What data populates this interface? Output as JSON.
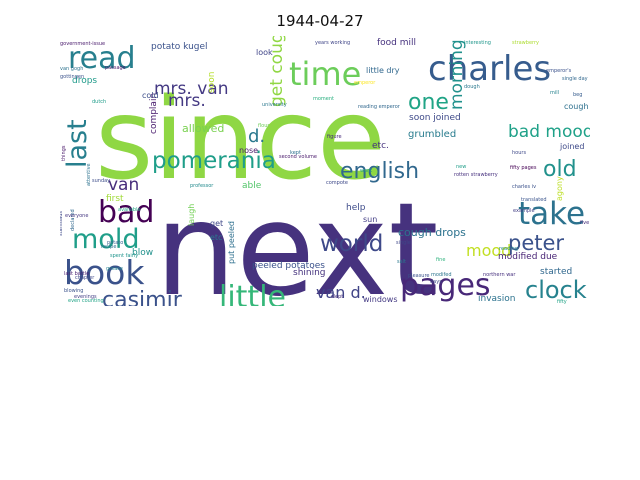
{
  "chart_data": {
    "type": "wordcloud",
    "title": "1944-04-27",
    "words": [
      {
        "text": "since",
        "color": "#8fd744"
      },
      {
        "text": "next",
        "color": "#46327e"
      },
      {
        "text": "charles",
        "color": "#365c8d"
      },
      {
        "text": "time",
        "color": "#6ccd5a"
      },
      {
        "text": "read",
        "color": "#277f8e"
      },
      {
        "text": "book",
        "color": "#3b528b"
      },
      {
        "text": "last",
        "color": "#277f8e"
      },
      {
        "text": "mold",
        "color": "#1f9e89"
      },
      {
        "text": "bad",
        "color": "#440154"
      },
      {
        "text": "take",
        "color": "#2c728e"
      },
      {
        "text": "pages",
        "color": "#482878"
      },
      {
        "text": "little",
        "color": "#35b779"
      },
      {
        "text": "pomerania",
        "color": "#1f9e89"
      },
      {
        "text": "english",
        "color": "#31688e"
      },
      {
        "text": "world",
        "color": "#3e4989"
      },
      {
        "text": "clock",
        "color": "#26828e"
      },
      {
        "text": "casimir",
        "color": "#3b528b"
      },
      {
        "text": "peter",
        "color": "#3b528b"
      },
      {
        "text": "old",
        "color": "#21918c"
      },
      {
        "text": "one",
        "color": "#20a486"
      },
      {
        "text": "mrs. van",
        "color": "#443983"
      },
      {
        "text": "mrs.",
        "color": "#443983"
      },
      {
        "text": "bad mood",
        "color": "#1fa188"
      },
      {
        "text": "morning",
        "color": "#21918c"
      },
      {
        "text": "get cough",
        "color": "#90d743"
      },
      {
        "text": "van d.",
        "color": "#414487"
      },
      {
        "text": "van",
        "color": "#472d7b"
      },
      {
        "text": "d.",
        "color": "#2a788e"
      },
      {
        "text": "mood",
        "color": "#c2df23"
      },
      {
        "text": "allowed",
        "color": "#7ad151"
      },
      {
        "text": "cough drops",
        "color": "#2c728e"
      },
      {
        "text": "shining",
        "color": "#46337e"
      },
      {
        "text": "peeled potatoes",
        "color": "#3b528b"
      },
      {
        "text": "grumbled",
        "color": "#287c8e"
      },
      {
        "text": "soon joined",
        "color": "#3e4a89"
      },
      {
        "text": "modified due",
        "color": "#482475"
      },
      {
        "text": "invasion",
        "color": "#2c728e"
      },
      {
        "text": "windows",
        "color": "#443a83"
      },
      {
        "text": "started",
        "color": "#31688e"
      },
      {
        "text": "potato kugel",
        "color": "#3b528b"
      },
      {
        "text": "food mill",
        "color": "#46327e"
      },
      {
        "text": "little dry",
        "color": "#31688e"
      },
      {
        "text": "joined",
        "color": "#3e4a89"
      },
      {
        "text": "cough",
        "color": "#2d708e"
      },
      {
        "text": "complain",
        "color": "#481b6d"
      },
      {
        "text": "soon",
        "color": "#b5de2b"
      },
      {
        "text": "cold",
        "color": "#3d4e8a"
      },
      {
        "text": "look",
        "color": "#404588"
      },
      {
        "text": "nose",
        "color": "#48186a"
      },
      {
        "text": "first",
        "color": "#a0da39"
      },
      {
        "text": "blow",
        "color": "#21918c"
      },
      {
        "text": "laugh",
        "color": "#73d056"
      },
      {
        "text": "put peeled",
        "color": "#2e6f8e"
      },
      {
        "text": "get",
        "color": "#3f4788"
      },
      {
        "text": "etc",
        "color": "#2a788e"
      },
      {
        "text": "help",
        "color": "#3e4c8a"
      },
      {
        "text": "sun",
        "color": "#433e85"
      },
      {
        "text": "able",
        "color": "#52c569"
      },
      {
        "text": "drops",
        "color": "#1f9a8a"
      },
      {
        "text": "etc.",
        "color": "#46327e"
      },
      {
        "text": "agony",
        "color": "#bddf26"
      },
      {
        "text": "government-issue",
        "color": "#48196b"
      },
      {
        "text": "strawberry",
        "color": "#addc30"
      },
      {
        "text": "interesting",
        "color": "#1f968b"
      },
      {
        "text": "charles iv",
        "color": "#3b528b"
      },
      {
        "text": "years working",
        "color": "#404688"
      },
      {
        "text": "flour",
        "color": "#6ece58"
      },
      {
        "text": "dough",
        "color": "#2a788e"
      },
      {
        "text": "rotten strawberry",
        "color": "#46307e"
      },
      {
        "text": "professor",
        "color": "#238a8d"
      },
      {
        "text": "translated",
        "color": "#3a548c"
      },
      {
        "text": "single day",
        "color": "#31688e"
      },
      {
        "text": "fifty pages",
        "color": "#440154"
      },
      {
        "text": "mill",
        "color": "#26828e"
      },
      {
        "text": "beg",
        "color": "#365c8d"
      },
      {
        "text": "new",
        "color": "#1f9e89"
      },
      {
        "text": "fine",
        "color": "#2db27d"
      },
      {
        "text": "days",
        "color": "#3e4989"
      },
      {
        "text": "recipe",
        "color": "#2e6e8e"
      },
      {
        "text": "passage",
        "color": "#481467"
      },
      {
        "text": "chapter",
        "color": "#3f4889"
      },
      {
        "text": "university",
        "color": "#2a788e"
      },
      {
        "text": "moment",
        "color": "#29af7f"
      },
      {
        "text": "second volume",
        "color": "#48186a"
      },
      {
        "text": "figure",
        "color": "#472a7a"
      },
      {
        "text": "emperor",
        "color": "#fde725"
      },
      {
        "text": "reading emperor",
        "color": "#31688e"
      },
      {
        "text": "gottingen",
        "color": "#3b528b"
      },
      {
        "text": "van gogh",
        "color": "#2c728e"
      },
      {
        "text": "hours",
        "color": "#3e4989"
      },
      {
        "text": "example",
        "color": "#433e85"
      },
      {
        "text": "potato",
        "color": "#34618d"
      },
      {
        "text": "grease",
        "color": "#26828e"
      },
      {
        "text": "spent fairly",
        "color": "#1f948c"
      },
      {
        "text": "last battle",
        "color": "#482173"
      },
      {
        "text": "kept",
        "color": "#2d708e"
      },
      {
        "text": "dutch",
        "color": "#1e9c89"
      },
      {
        "text": "compote",
        "color": "#3e4989"
      },
      {
        "text": "slept",
        "color": "#472f7d"
      },
      {
        "text": "single",
        "color": "#3f4788"
      },
      {
        "text": "five days",
        "color": "#472d7b"
      },
      {
        "text": "salt",
        "color": "#2a788e"
      },
      {
        "text": "reading",
        "color": "#24878e"
      },
      {
        "text": "pleasure",
        "color": "#3b528b"
      },
      {
        "text": "fifty",
        "color": "#20a386"
      },
      {
        "text": "available",
        "color": "#22a884"
      },
      {
        "text": "evenings",
        "color": "#433e85"
      },
      {
        "text": "northern war",
        "color": "#46307e"
      },
      {
        "text": "modifed",
        "color": "#2b758e"
      },
      {
        "text": "blowing",
        "color": "#3b528b"
      },
      {
        "text": "things",
        "color": "#481769"
      },
      {
        "text": "attentive",
        "color": "#2c728e"
      },
      {
        "text": "stanislaus",
        "color": "#3e4989"
      },
      {
        "text": "declared",
        "color": "#31688e"
      },
      {
        "text": "emperor's",
        "color": "#3b528b"
      },
      {
        "text": "everyone",
        "color": "#453781"
      },
      {
        "text": "sunday",
        "color": "#3d4d8a"
      },
      {
        "text": "even counting",
        "color": "#20a386"
      },
      {
        "text": "work",
        "color": "#1f9e89"
      }
    ]
  }
}
